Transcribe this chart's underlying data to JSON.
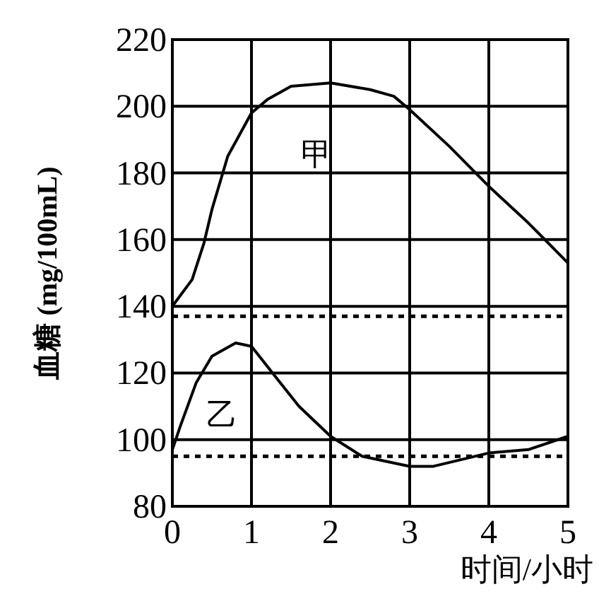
{
  "chart_data": {
    "type": "line",
    "xlabel": "时间/小时",
    "ylabel": "血糖 (mg/100mL)",
    "xlim": [
      0,
      5
    ],
    "ylim": [
      80,
      220
    ],
    "xticks": [
      0,
      1,
      2,
      3,
      4,
      5
    ],
    "yticks": [
      80,
      100,
      120,
      140,
      160,
      180,
      200,
      220
    ],
    "grid": true,
    "marker": "none",
    "line_style": "solid",
    "series": [
      {
        "name": "甲",
        "color": "#000000",
        "x": [
          0,
          0.25,
          0.4,
          0.5,
          0.7,
          1.0,
          1.2,
          1.5,
          2.0,
          2.5,
          2.8,
          3.0,
          3.5,
          4.0,
          4.5,
          5.0
        ],
        "values": [
          140,
          148,
          159,
          169,
          185,
          198,
          202,
          206,
          207,
          205,
          203,
          199,
          188,
          176,
          165,
          153
        ]
      },
      {
        "name": "乙",
        "color": "#000000",
        "x": [
          0,
          0.1,
          0.3,
          0.5,
          0.8,
          1.0,
          1.3,
          1.6,
          2.0,
          2.4,
          3.0,
          3.3,
          4.0,
          4.5,
          5.0
        ],
        "values": [
          97,
          104,
          117,
          125,
          129,
          128,
          119,
          110,
          101,
          95,
          92,
          92,
          96,
          97,
          101
        ]
      }
    ],
    "ref_lines": [
      {
        "axis": "y",
        "value": 137,
        "color": "#000000",
        "line_style": "dotted"
      },
      {
        "axis": "y",
        "value": 95,
        "color": "#000000",
        "line_style": "dotted"
      }
    ]
  }
}
